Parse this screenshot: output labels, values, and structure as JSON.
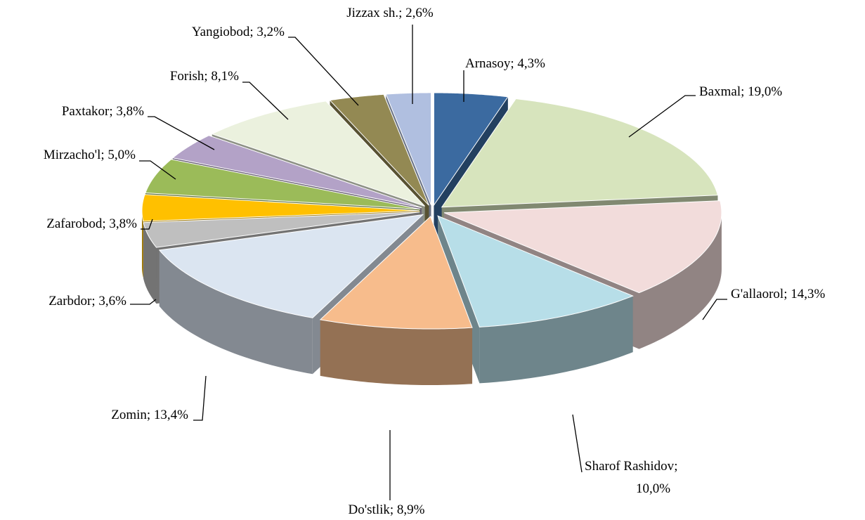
{
  "chart_data": {
    "type": "pie",
    "categories": [
      "Arnasoy",
      "Baxmal",
      "G'allaorol",
      "Sharof Rashidov",
      "Do'stlik",
      "Zomin",
      "Zarbdor",
      "Zafarobod",
      "Mirzacho'l",
      "Paxtakor",
      "Forish",
      "Yangiobod",
      "Jizzax sh."
    ],
    "values": [
      4.3,
      19.0,
      14.3,
      10.0,
      8.9,
      13.4,
      3.6,
      3.8,
      5.0,
      3.8,
      8.1,
      3.2,
      2.6
    ],
    "value_labels": [
      "4,3%",
      "19,0%",
      "14,3%",
      "10,0%",
      "8,9%",
      "13,4%",
      "3,6%",
      "3,8%",
      "5,0%",
      "3,8%",
      "8,1%",
      "3,2%",
      "2,6%"
    ],
    "label_separator": "; ",
    "colors": [
      "#3b6aa0",
      "#d7e4bd",
      "#f2dcdb",
      "#b7dee8",
      "#f7bc8c",
      "#dbe5f1",
      "#bfbfbf",
      "#ffc000",
      "#9bbb59",
      "#b3a2c7",
      "#ebf1de",
      "#938953",
      "#b0bfe0"
    ]
  }
}
